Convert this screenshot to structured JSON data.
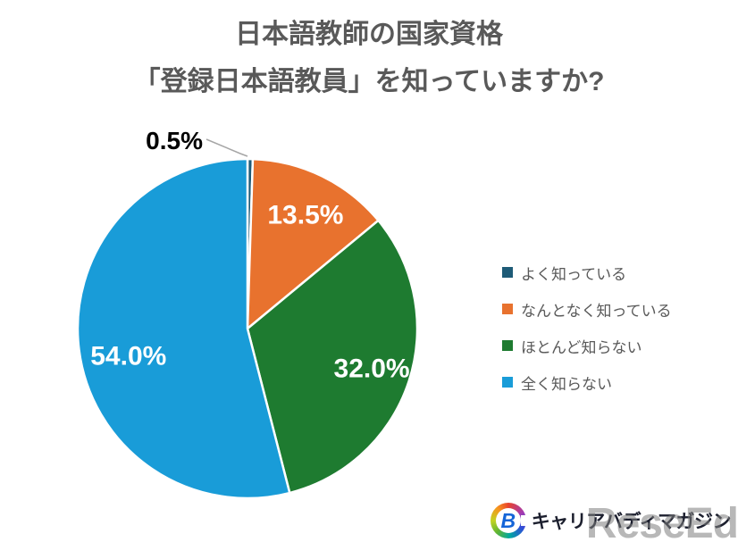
{
  "title": {
    "line1": "日本語教師の国家資格",
    "line2": "「登録日本語教員」を知っていますか?"
  },
  "chart_data": {
    "type": "pie",
    "title": "日本語教師の国家資格「登録日本語教員」を知っていますか?",
    "start_angle_deg": 0,
    "direction": "clockwise",
    "total": 100,
    "slices": [
      {
        "label": "よく知っている",
        "value": 0.5,
        "display": "0.5%",
        "color": "#1E5B77",
        "label_style": "outside-callout"
      },
      {
        "label": "なんとなく知っている",
        "value": 13.5,
        "display": "13.5%",
        "color": "#E8722E",
        "label_style": "inside"
      },
      {
        "label": "ほとんど知らない",
        "value": 32.0,
        "display": "32.0%",
        "color": "#1E7B30",
        "label_style": "inside"
      },
      {
        "label": "全く知らない",
        "value": 54.0,
        "display": "54.0%",
        "color": "#199CD8",
        "label_style": "inside"
      }
    ],
    "legend_position": "right",
    "data_label_color_inside": "#FFFFFF",
    "data_label_color_outside": "#000000",
    "callout_line_color": "#A6A6A6"
  },
  "footer": {
    "logo_letter": "B",
    "logo_text": "キャリアバディマガジン",
    "watermark": "ReseEd"
  }
}
